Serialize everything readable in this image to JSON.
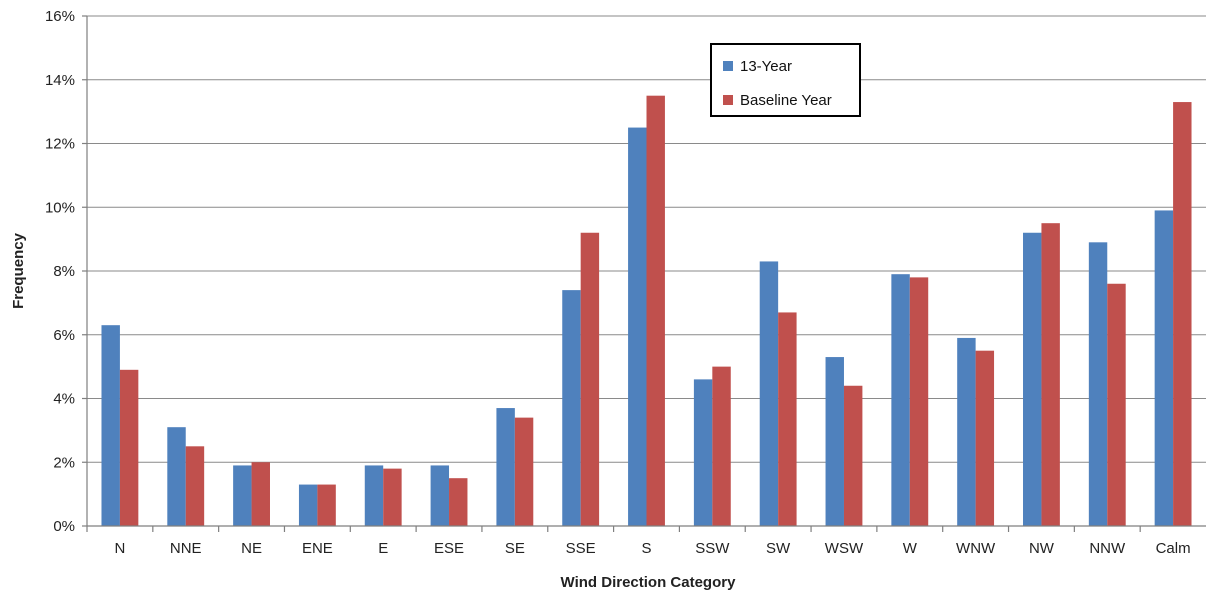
{
  "chart_data": {
    "type": "bar",
    "title": "",
    "xlabel": "Wind Direction Category",
    "ylabel": "Frequency",
    "ylim": [
      0,
      16
    ],
    "ytick_values": [
      0,
      2,
      4,
      6,
      8,
      10,
      12,
      14,
      16
    ],
    "ytick_labels": [
      "0%",
      "2%",
      "4%",
      "6%",
      "8%",
      "10%",
      "12%",
      "14%",
      "16%"
    ],
    "grid": true,
    "legend_position": "top-center-right",
    "categories": [
      "N",
      "NNE",
      "NE",
      "ENE",
      "E",
      "ESE",
      "SE",
      "SSE",
      "S",
      "SSW",
      "SW",
      "WSW",
      "W",
      "WNW",
      "NW",
      "NNW",
      "Calm"
    ],
    "series": [
      {
        "name": "13-Year",
        "color": "#4f81bd",
        "values": [
          6.3,
          3.1,
          1.9,
          1.3,
          1.9,
          1.9,
          3.7,
          7.4,
          12.5,
          4.6,
          8.3,
          5.3,
          7.9,
          5.9,
          9.2,
          8.9,
          9.9
        ]
      },
      {
        "name": "Baseline Year",
        "color": "#c0504d",
        "values": [
          4.9,
          2.5,
          2.0,
          1.3,
          1.8,
          1.5,
          3.4,
          9.2,
          13.5,
          5.0,
          6.7,
          4.4,
          7.8,
          5.5,
          9.5,
          7.6,
          13.3
        ]
      }
    ]
  }
}
